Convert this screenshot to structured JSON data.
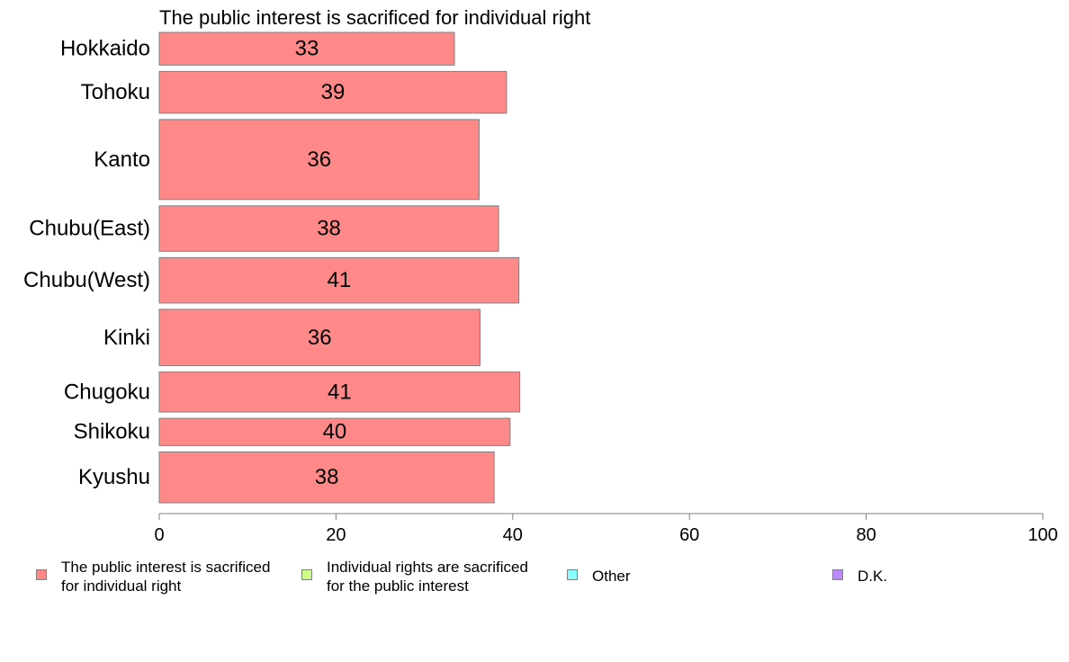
{
  "chart_data": {
    "type": "bar",
    "orientation": "horizontal",
    "title": "The public interest is sacrificed for individual right",
    "categories": [
      "Hokkaido",
      "Tohoku",
      "Kanto",
      "Chubu(East)",
      "Chubu(West)",
      "Kinki",
      "Chugoku",
      "Shikoku",
      "Kyushu"
    ],
    "values": [
      33.4,
      39.3,
      36.2,
      38.4,
      40.7,
      36.3,
      40.8,
      39.7,
      37.9
    ],
    "value_labels": [
      "33",
      "39",
      "36",
      "38",
      "41",
      "36",
      "41",
      "40",
      "38"
    ],
    "relative_bar_heights": [
      36,
      46,
      88,
      50,
      50,
      62,
      44,
      30,
      56
    ],
    "xlim": [
      0,
      100
    ],
    "xticks": [
      "0",
      "20",
      "40",
      "60",
      "80",
      "100"
    ],
    "xlabel": "",
    "ylabel": "",
    "grid": false,
    "bar_color": "#ff8888",
    "bar_edge_color": "#808080",
    "legend_placement": "bottom",
    "legend": [
      {
        "label": "The public interest is sacrificed\nfor individual right",
        "color": "#ff8888"
      },
      {
        "label": "Individual rights are sacrificed\nfor the public interest",
        "color": "#ccff88"
      },
      {
        "label": "Other",
        "color": "#88ffff"
      },
      {
        "label": "D.K.",
        "color": "#bb88ff"
      }
    ]
  }
}
